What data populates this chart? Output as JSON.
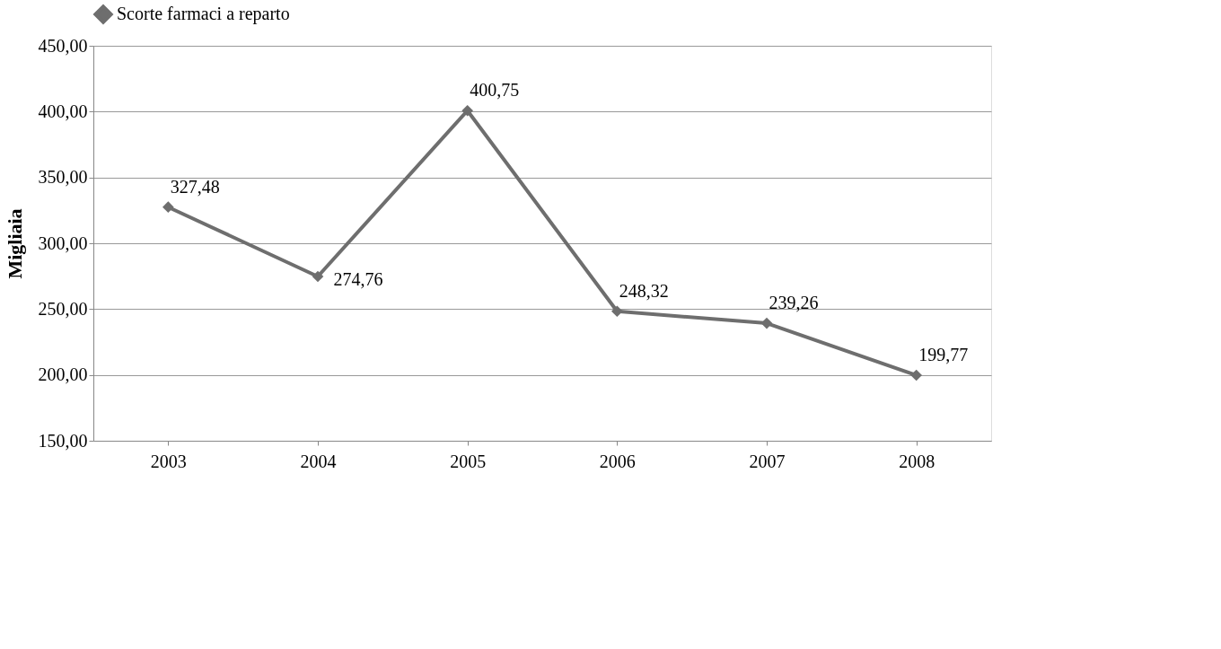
{
  "chart_data": {
    "type": "line",
    "categories": [
      "2003",
      "2004",
      "2005",
      "2006",
      "2007",
      "2008"
    ],
    "series": [
      {
        "name": "Scorte farmaci a reparto",
        "color": "#6e6e6e",
        "values": [
          327.48,
          274.76,
          400.75,
          248.32,
          239.26,
          199.77
        ],
        "value_labels": [
          "327,48",
          "274,76",
          "400,75",
          "248,32",
          "239,26",
          "199,77"
        ]
      }
    ],
    "ylabel": "Migliaia",
    "ylim": [
      150,
      450
    ],
    "yticks": [
      {
        "value": 150,
        "label": "150,00"
      },
      {
        "value": 200,
        "label": "200,00"
      },
      {
        "value": 250,
        "label": "250,00"
      },
      {
        "value": 300,
        "label": "300,00"
      },
      {
        "value": 350,
        "label": "350,00"
      },
      {
        "value": 400,
        "label": "400,00"
      },
      {
        "value": 450,
        "label": "450,00"
      }
    ],
    "grid": "y",
    "legend": "top",
    "marker": "diamond",
    "line_style": "solid"
  }
}
